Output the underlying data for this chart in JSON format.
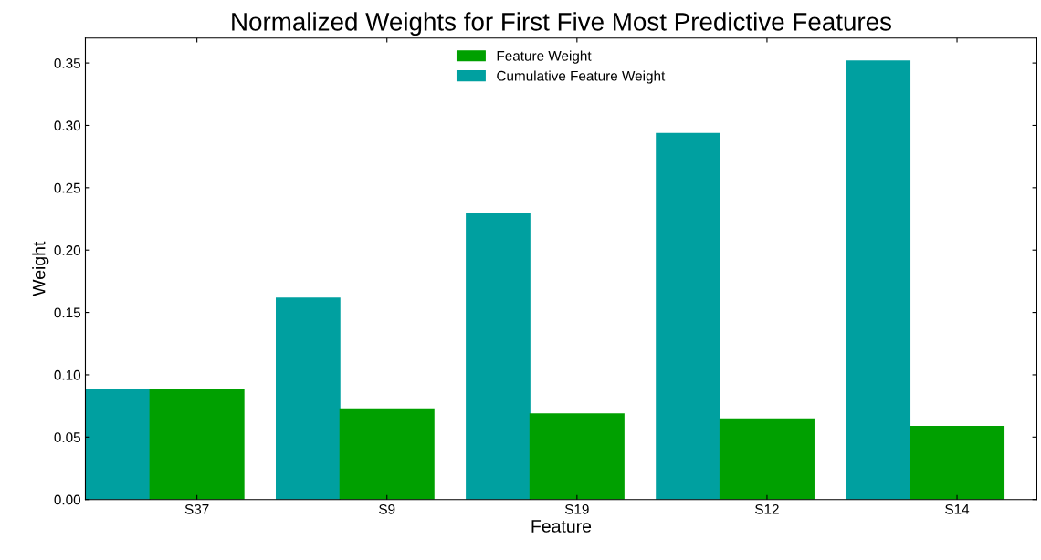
{
  "chart_data": {
    "type": "bar",
    "title": "Normalized Weights for First Five Most Predictive Features",
    "xlabel": "Feature",
    "ylabel": "Weight",
    "categories": [
      "S37",
      "S9",
      "S19",
      "S12",
      "S14"
    ],
    "series": [
      {
        "name": "Feature Weight",
        "color": "#00a000",
        "values": [
          0.089,
          0.073,
          0.069,
          0.065,
          0.059
        ]
      },
      {
        "name": "Cumulative Feature Weight",
        "color": "#00a0a0",
        "values": [
          0.089,
          0.162,
          0.23,
          0.294,
          0.352
        ]
      }
    ],
    "ylim": [
      0,
      0.37
    ],
    "yticks": [
      {
        "value": 0,
        "label": "0.00"
      },
      {
        "value": 0.05,
        "label": "0.05"
      },
      {
        "value": 0.1,
        "label": "0.10"
      },
      {
        "value": 0.15,
        "label": "0.15"
      },
      {
        "value": 0.2,
        "label": "0.20"
      },
      {
        "value": 0.25,
        "label": "0.25"
      },
      {
        "value": 0.3,
        "label": "0.30"
      },
      {
        "value": 0.35,
        "label": "0.35"
      }
    ],
    "legend": "top",
    "grid": false
  }
}
